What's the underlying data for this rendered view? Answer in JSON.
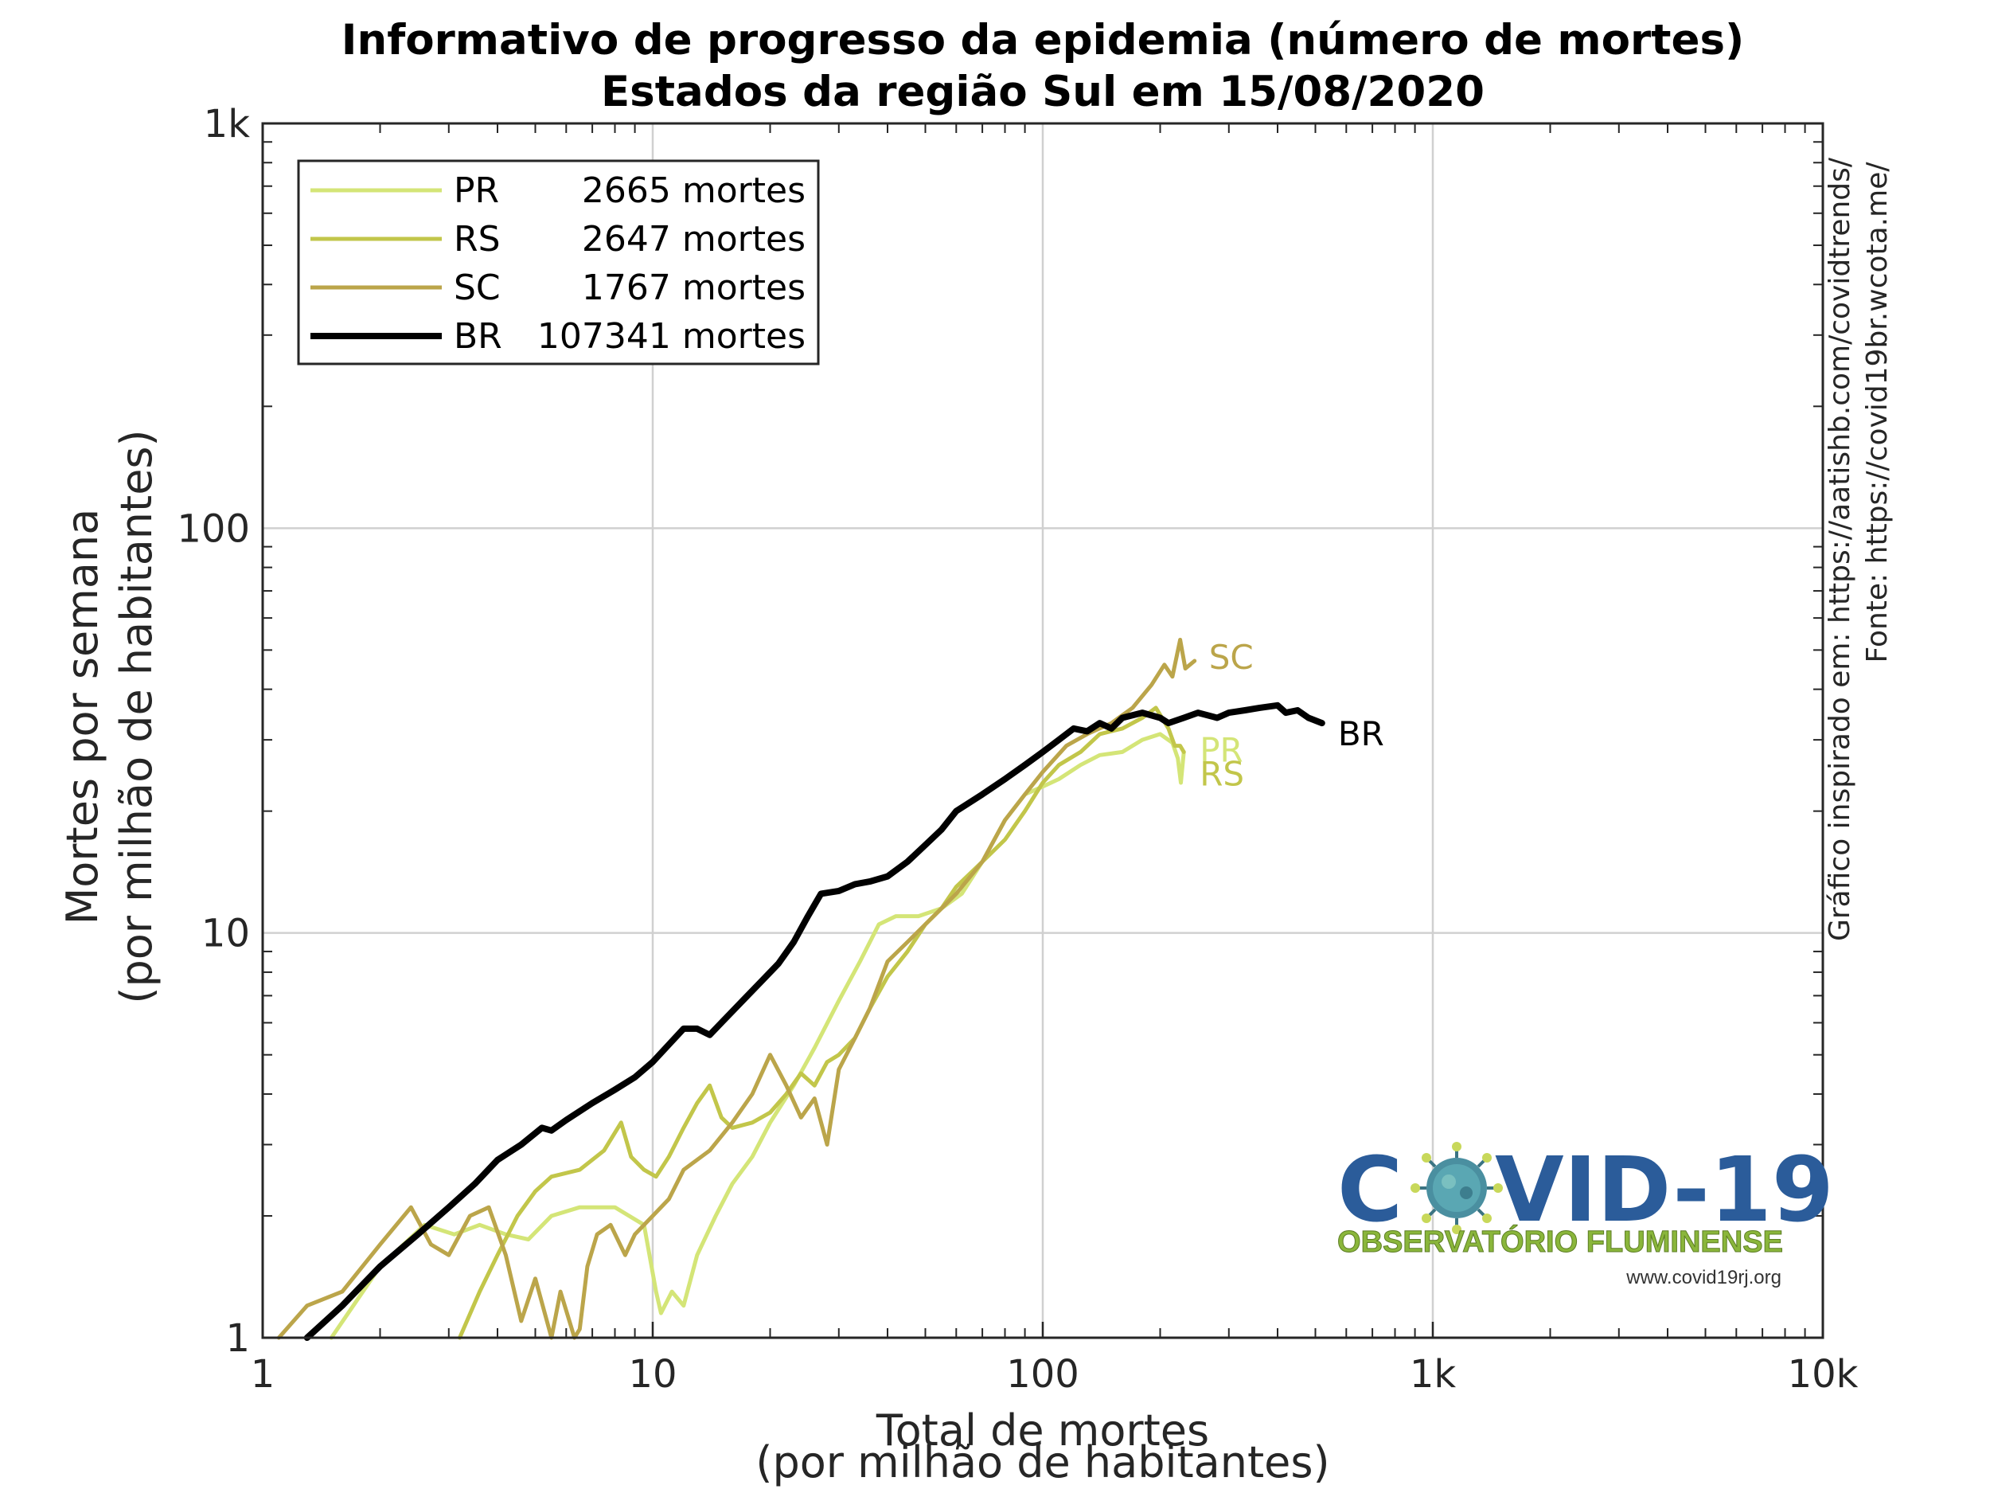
{
  "chart_data": {
    "type": "line",
    "title": "Informativo de progresso da epidemia (número de mortes)",
    "subtitle": "Estados da região Sul em 15/08/2020",
    "xlabel_line1": "Total de mortes",
    "xlabel_line2": "(por milhão de habitantes)",
    "ylabel_line1": "Mortes por semana",
    "ylabel_line2": "(por milhão de habitantes)",
    "xscale": "log",
    "yscale": "log",
    "xlim": [
      1,
      10000
    ],
    "ylim": [
      1,
      1000
    ],
    "x_ticks": [
      {
        "value": 1,
        "label": "1"
      },
      {
        "value": 10,
        "label": "10"
      },
      {
        "value": 100,
        "label": "100"
      },
      {
        "value": 1000,
        "label": "1k"
      },
      {
        "value": 10000,
        "label": "10k"
      }
    ],
    "y_ticks": [
      {
        "value": 1,
        "label": "1"
      },
      {
        "value": 10,
        "label": "10"
      },
      {
        "value": 100,
        "label": "100"
      },
      {
        "value": 1000,
        "label": "1k"
      }
    ],
    "grid": true,
    "legend_position": "top-left",
    "side_notes": [
      "Gráfico inspirado em: https://aatishb.com/covidtrends/",
      "Fonte: https://covid19br.wcota.me/"
    ],
    "series": [
      {
        "name": "PR",
        "deaths": "2665 mortes",
        "color": "#d4e577",
        "line_width": 5,
        "end_label": "PR",
        "points": [
          [
            1.5,
            1.0
          ],
          [
            2.0,
            1.5
          ],
          [
            2.6,
            1.9
          ],
          [
            3.1,
            1.8
          ],
          [
            3.6,
            1.9
          ],
          [
            4.2,
            1.8
          ],
          [
            4.8,
            1.75
          ],
          [
            5.5,
            2.0
          ],
          [
            6.5,
            2.1
          ],
          [
            8.0,
            2.1
          ],
          [
            9.5,
            1.9
          ],
          [
            10.2,
            1.3
          ],
          [
            10.5,
            1.15
          ],
          [
            11.2,
            1.3
          ],
          [
            12.0,
            1.2
          ],
          [
            13.0,
            1.6
          ],
          [
            14.5,
            2.0
          ],
          [
            16,
            2.4
          ],
          [
            18,
            2.8
          ],
          [
            20,
            3.4
          ],
          [
            23,
            4.2
          ],
          [
            26,
            5.2
          ],
          [
            30,
            6.8
          ],
          [
            34,
            8.5
          ],
          [
            38,
            10.5
          ],
          [
            42,
            11
          ],
          [
            48,
            11
          ],
          [
            55,
            11.5
          ],
          [
            62,
            12.5
          ],
          [
            70,
            15
          ],
          [
            80,
            19
          ],
          [
            90,
            22
          ],
          [
            100,
            23
          ],
          [
            110,
            24
          ],
          [
            125,
            26
          ],
          [
            140,
            27.5
          ],
          [
            160,
            28
          ],
          [
            180,
            30
          ],
          [
            200,
            31
          ],
          [
            215,
            29.5
          ],
          [
            222,
            27
          ],
          [
            226,
            23.5
          ],
          [
            230,
            28
          ]
        ]
      },
      {
        "name": "RS",
        "deaths": "2647 mortes",
        "color": "#c2c64a",
        "line_width": 5,
        "end_label": "RS",
        "points": [
          [
            3.2,
            1.0
          ],
          [
            3.6,
            1.3
          ],
          [
            4.0,
            1.6
          ],
          [
            4.5,
            2.0
          ],
          [
            5.0,
            2.3
          ],
          [
            5.5,
            2.5
          ],
          [
            6.5,
            2.6
          ],
          [
            7.5,
            2.9
          ],
          [
            8.3,
            3.4
          ],
          [
            8.8,
            2.8
          ],
          [
            9.5,
            2.6
          ],
          [
            10.2,
            2.5
          ],
          [
            11,
            2.8
          ],
          [
            12,
            3.3
          ],
          [
            13,
            3.8
          ],
          [
            14,
            4.2
          ],
          [
            15,
            3.5
          ],
          [
            16,
            3.3
          ],
          [
            18,
            3.4
          ],
          [
            20,
            3.6
          ],
          [
            22,
            4.0
          ],
          [
            24,
            4.5
          ],
          [
            26,
            4.2
          ],
          [
            28,
            4.8
          ],
          [
            30,
            5.0
          ],
          [
            33,
            5.5
          ],
          [
            36,
            6.5
          ],
          [
            40,
            7.8
          ],
          [
            45,
            9.0
          ],
          [
            50,
            10.5
          ],
          [
            55,
            11.5
          ],
          [
            60,
            13
          ],
          [
            70,
            15
          ],
          [
            80,
            17
          ],
          [
            90,
            20
          ],
          [
            100,
            23.5
          ],
          [
            110,
            26
          ],
          [
            125,
            28
          ],
          [
            140,
            31
          ],
          [
            160,
            32
          ],
          [
            180,
            34
          ],
          [
            195,
            36
          ],
          [
            210,
            32
          ],
          [
            218,
            29
          ],
          [
            225,
            29
          ],
          [
            230,
            28
          ]
        ]
      },
      {
        "name": "SC",
        "deaths": "1767 mortes",
        "color": "#bba54a",
        "line_width": 5,
        "end_label": "SC",
        "points": [
          [
            1.1,
            1.0
          ],
          [
            1.3,
            1.2
          ],
          [
            1.6,
            1.3
          ],
          [
            2.0,
            1.7
          ],
          [
            2.4,
            2.1
          ],
          [
            2.7,
            1.7
          ],
          [
            3.0,
            1.6
          ],
          [
            3.4,
            2.0
          ],
          [
            3.8,
            2.1
          ],
          [
            4.2,
            1.6
          ],
          [
            4.6,
            1.1
          ],
          [
            5.0,
            1.4
          ],
          [
            5.5,
            1.0
          ],
          [
            5.8,
            1.3
          ],
          [
            6.3,
            1.0
          ],
          [
            6.5,
            1.05
          ],
          [
            6.8,
            1.5
          ],
          [
            7.2,
            1.8
          ],
          [
            7.8,
            1.9
          ],
          [
            8.5,
            1.6
          ],
          [
            9.0,
            1.8
          ],
          [
            10,
            2.0
          ],
          [
            11,
            2.2
          ],
          [
            12,
            2.6
          ],
          [
            14,
            2.9
          ],
          [
            16,
            3.4
          ],
          [
            18,
            4.0
          ],
          [
            20,
            5.0
          ],
          [
            22,
            4.2
          ],
          [
            24,
            3.5
          ],
          [
            26,
            3.9
          ],
          [
            28,
            3.0
          ],
          [
            30,
            4.6
          ],
          [
            33,
            5.5
          ],
          [
            36,
            6.5
          ],
          [
            40,
            8.5
          ],
          [
            45,
            9.5
          ],
          [
            50,
            10.5
          ],
          [
            55,
            11.5
          ],
          [
            60,
            12.5
          ],
          [
            70,
            15
          ],
          [
            80,
            19
          ],
          [
            90,
            22
          ],
          [
            100,
            25
          ],
          [
            115,
            29
          ],
          [
            130,
            31
          ],
          [
            150,
            33
          ],
          [
            170,
            36
          ],
          [
            190,
            41
          ],
          [
            205,
            46
          ],
          [
            215,
            43
          ],
          [
            225,
            53
          ],
          [
            232,
            45
          ],
          [
            245,
            47
          ]
        ]
      },
      {
        "name": "BR",
        "deaths": "107341 mortes",
        "color": "#000000",
        "line_width": 8,
        "end_label": "BR",
        "points": [
          [
            1.3,
            1.0
          ],
          [
            1.6,
            1.2
          ],
          [
            2.0,
            1.5
          ],
          [
            2.5,
            1.8
          ],
          [
            3.0,
            2.1
          ],
          [
            3.5,
            2.4
          ],
          [
            4.0,
            2.75
          ],
          [
            4.6,
            3.0
          ],
          [
            5.2,
            3.3
          ],
          [
            5.5,
            3.25
          ],
          [
            6.0,
            3.45
          ],
          [
            7.0,
            3.8
          ],
          [
            8.0,
            4.1
          ],
          [
            9.0,
            4.4
          ],
          [
            10,
            4.8
          ],
          [
            11,
            5.3
          ],
          [
            12,
            5.8
          ],
          [
            13,
            5.8
          ],
          [
            14,
            5.6
          ],
          [
            15,
            6.0
          ],
          [
            17,
            6.8
          ],
          [
            19,
            7.6
          ],
          [
            21,
            8.4
          ],
          [
            23,
            9.5
          ],
          [
            25,
            11
          ],
          [
            27,
            12.5
          ],
          [
            30,
            12.7
          ],
          [
            33,
            13.2
          ],
          [
            36,
            13.4
          ],
          [
            40,
            13.8
          ],
          [
            45,
            15
          ],
          [
            50,
            16.5
          ],
          [
            55,
            18
          ],
          [
            60,
            20
          ],
          [
            70,
            22
          ],
          [
            80,
            24
          ],
          [
            90,
            26
          ],
          [
            100,
            28
          ],
          [
            110,
            30
          ],
          [
            120,
            32
          ],
          [
            130,
            31.5
          ],
          [
            140,
            33
          ],
          [
            150,
            32
          ],
          [
            160,
            34
          ],
          [
            180,
            35
          ],
          [
            200,
            34
          ],
          [
            210,
            33
          ],
          [
            230,
            34
          ],
          [
            250,
            35
          ],
          [
            280,
            34
          ],
          [
            300,
            35
          ],
          [
            330,
            35.5
          ],
          [
            360,
            36
          ],
          [
            400,
            36.5
          ],
          [
            420,
            35
          ],
          [
            450,
            35.5
          ],
          [
            480,
            34
          ],
          [
            520,
            33
          ]
        ]
      }
    ]
  },
  "logo": {
    "title": "COVID-19",
    "subtitle": "OBSERVATÓRIO FLUMINENSE",
    "url": "www.covid19rj.org"
  }
}
